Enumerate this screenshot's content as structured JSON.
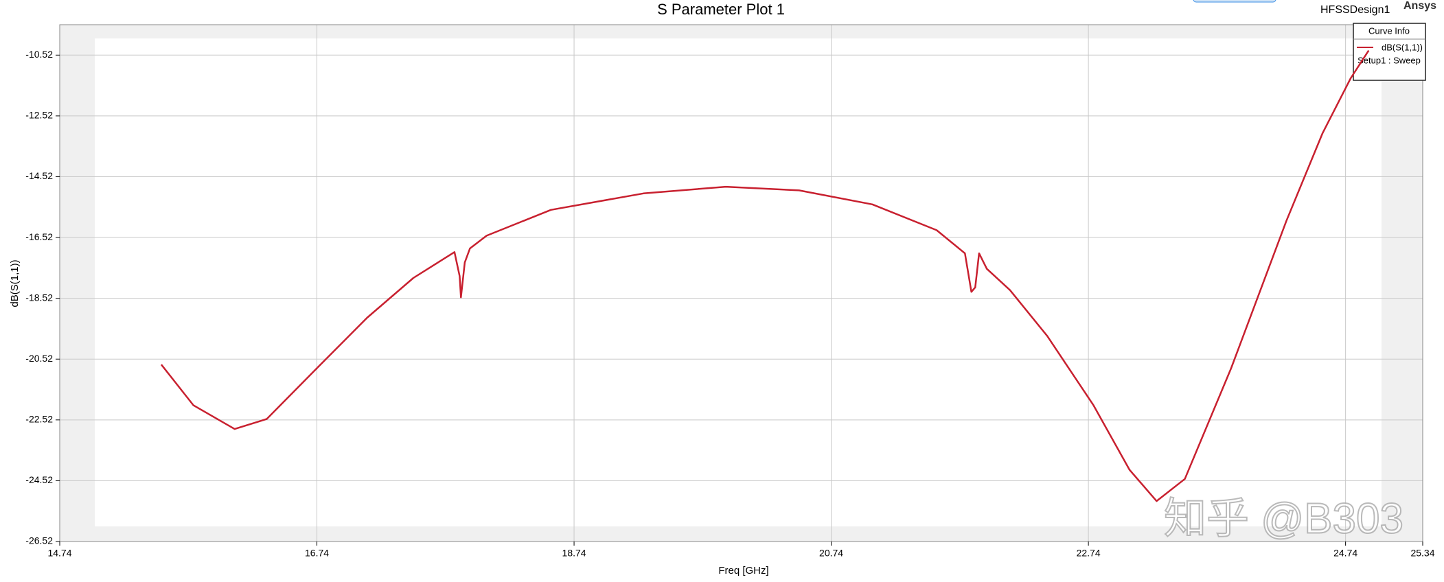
{
  "chart_data": {
    "type": "line",
    "title": "S Parameter Plot 1",
    "design": "HFSSDesign1",
    "brand": "Ansys",
    "xlabel": "Freq [GHz]",
    "ylabel": "dB(S(1,1))",
    "legend_title": "Curve Info",
    "legend_subtitle": "Setup1 : Sweep",
    "watermark": "知乎 @B303",
    "grid": true,
    "xlim": [
      14.74,
      25.34
    ],
    "ylim": [
      -26.52,
      -9.52
    ],
    "xticks": [
      14.74,
      16.74,
      18.74,
      20.74,
      22.74,
      24.74,
      25.34
    ],
    "yticks": [
      -26.52,
      -24.52,
      -22.52,
      -20.52,
      -18.52,
      -16.52,
      -14.52,
      -12.52,
      -10.52
    ],
    "x": [
      15.53,
      15.78,
      16.1,
      16.35,
      16.74,
      17.13,
      17.49,
      17.81,
      17.85,
      17.86,
      17.89,
      17.93,
      18.06,
      18.56,
      19.28,
      19.92,
      20.49,
      21.06,
      21.56,
      21.78,
      21.83,
      21.86,
      21.89,
      21.95,
      22.13,
      22.42,
      22.78,
      23.06,
      23.27,
      23.49,
      23.85,
      24.28,
      24.56,
      24.78,
      24.92
    ],
    "series": [
      {
        "name": "dB(S(1,1))",
        "color": "#c8202f",
        "values": [
          -20.7,
          -22.04,
          -22.82,
          -22.49,
          -20.82,
          -19.16,
          -17.85,
          -17.0,
          -17.79,
          -18.49,
          -17.34,
          -16.88,
          -16.46,
          -15.61,
          -15.07,
          -14.85,
          -14.97,
          -15.43,
          -16.28,
          -17.04,
          -18.31,
          -18.16,
          -17.04,
          -17.55,
          -18.25,
          -19.76,
          -22.04,
          -24.16,
          -25.19,
          -24.46,
          -20.82,
          -15.97,
          -13.1,
          -11.28,
          -10.37
        ]
      }
    ]
  }
}
